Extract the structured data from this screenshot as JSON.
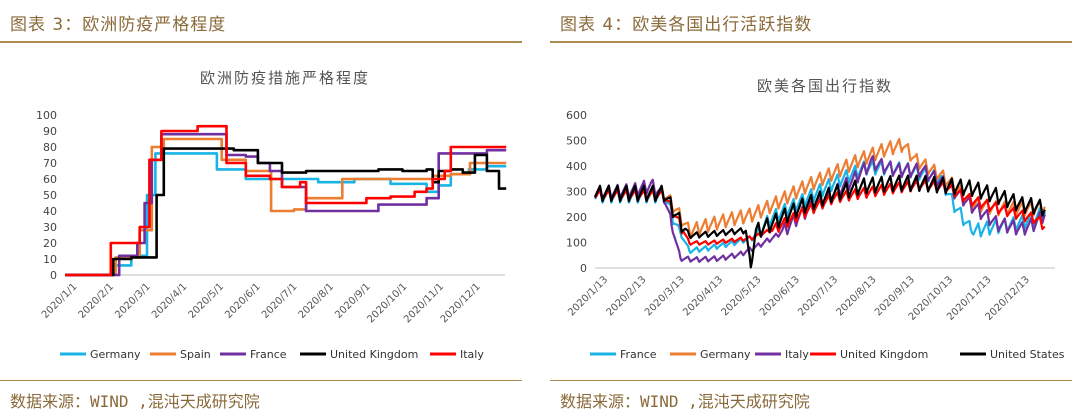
{
  "left_panel": {
    "figure_title": "图表 3：欧洲防疫严格程度",
    "source": "数据来源：WIND ,混沌天成研究院"
  },
  "right_panel": {
    "figure_title": "图表 4：欧美各国出行活跃指数",
    "source": "数据来源：WIND ,混沌天成研究院"
  },
  "chart_data": [
    {
      "type": "line",
      "title": "欧洲防疫措施严格程度",
      "xlabel": "",
      "ylabel": "",
      "ylim": [
        0,
        100
      ],
      "yticks": [
        0,
        10,
        20,
        30,
        40,
        50,
        60,
        70,
        80,
        90,
        100
      ],
      "x_tick_labels": [
        "2020/1/1",
        "2020/2/1",
        "2020/3/1",
        "2020/4/1",
        "2020/5/1",
        "2020/6/1",
        "2020/7/1",
        "2020/8/1",
        "2020/9/1",
        "2020/10/1",
        "2020/11/1",
        "2020/12/1"
      ],
      "x_range_days": [
        0,
        365
      ],
      "grid": false,
      "legend": "bottom",
      "series": [
        {
          "name": "Germany",
          "color": "#1ab3e6",
          "points": [
            [
              0,
              0
            ],
            [
              30,
              0
            ],
            [
              40,
              6
            ],
            [
              55,
              12
            ],
            [
              68,
              50
            ],
            [
              75,
              76
            ],
            [
              100,
              76
            ],
            [
              122,
              76
            ],
            [
              126,
              66
            ],
            [
              150,
              60
            ],
            [
              180,
              60
            ],
            [
              210,
              58
            ],
            [
              240,
              60
            ],
            [
              270,
              57
            ],
            [
              300,
              52
            ],
            [
              310,
              56
            ],
            [
              320,
              63
            ],
            [
              335,
              66
            ],
            [
              350,
              68
            ],
            [
              366,
              68
            ]
          ]
        },
        {
          "name": "Spain",
          "color": "#ed7d31",
          "points": [
            [
              0,
              0
            ],
            [
              30,
              0
            ],
            [
              42,
              11
            ],
            [
              62,
              28
            ],
            [
              72,
              80
            ],
            [
              82,
              85
            ],
            [
              120,
              85
            ],
            [
              130,
              72
            ],
            [
              150,
              65
            ],
            [
              168,
              65
            ],
            [
              171,
              40
            ],
            [
              190,
              41
            ],
            [
              200,
              48
            ],
            [
              230,
              60
            ],
            [
              260,
              60
            ],
            [
              290,
              60
            ],
            [
              305,
              62
            ],
            [
              320,
              63
            ],
            [
              336,
              70
            ],
            [
              366,
              70
            ]
          ]
        },
        {
          "name": "France",
          "color": "#7030a0",
          "points": [
            [
              0,
              0
            ],
            [
              30,
              0
            ],
            [
              45,
              12
            ],
            [
              60,
              20
            ],
            [
              66,
              45
            ],
            [
              72,
              72
            ],
            [
              80,
              88
            ],
            [
              130,
              88
            ],
            [
              134,
              75
            ],
            [
              150,
              74
            ],
            [
              160,
              70
            ],
            [
              170,
              65
            ],
            [
              180,
              55
            ],
            [
              200,
              40
            ],
            [
              240,
              40
            ],
            [
              260,
              44
            ],
            [
              282,
              44
            ],
            [
              300,
              48
            ],
            [
              310,
              76
            ],
            [
              330,
              76
            ],
            [
              350,
              78
            ],
            [
              366,
              78
            ]
          ]
        },
        {
          "name": "United Kingdom",
          "color": "#000000",
          "points": [
            [
              0,
              0
            ],
            [
              30,
              0
            ],
            [
              40,
              10
            ],
            [
              55,
              11
            ],
            [
              70,
              11
            ],
            [
              76,
              50
            ],
            [
              82,
              79
            ],
            [
              90,
              79
            ],
            [
              120,
              79
            ],
            [
              140,
              78
            ],
            [
              160,
              70
            ],
            [
              180,
              64
            ],
            [
              200,
              65
            ],
            [
              230,
              65
            ],
            [
              260,
              66
            ],
            [
              280,
              65
            ],
            [
              300,
              66
            ],
            [
              305,
              58
            ],
            [
              310,
              65
            ],
            [
              320,
              66
            ],
            [
              330,
              64
            ],
            [
              340,
              75
            ],
            [
              350,
              65
            ],
            [
              358,
              65
            ],
            [
              360,
              54
            ],
            [
              366,
              54
            ]
          ]
        },
        {
          "name": "Italy",
          "color": "#ff0000",
          "points": [
            [
              0,
              0
            ],
            [
              30,
              0
            ],
            [
              38,
              20
            ],
            [
              55,
              20
            ],
            [
              62,
              30
            ],
            [
              70,
              72
            ],
            [
              80,
              90
            ],
            [
              100,
              90
            ],
            [
              110,
              93
            ],
            [
              130,
              93
            ],
            [
              134,
              70
            ],
            [
              150,
              62
            ],
            [
              170,
              60
            ],
            [
              180,
              55
            ],
            [
              195,
              58
            ],
            [
              200,
              45
            ],
            [
              230,
              45
            ],
            [
              250,
              48
            ],
            [
              270,
              49
            ],
            [
              290,
              52
            ],
            [
              300,
              54
            ],
            [
              305,
              60
            ],
            [
              315,
              65
            ],
            [
              320,
              80
            ],
            [
              366,
              80
            ]
          ]
        }
      ]
    },
    {
      "type": "line",
      "title": "欧美各国出行指数",
      "xlabel": "",
      "ylabel": "",
      "ylim": [
        0,
        600
      ],
      "yticks": [
        0,
        100,
        200,
        300,
        400,
        500,
        600
      ],
      "x_tick_labels": [
        "2020/1/13",
        "2020/2/13",
        "2020/3/13",
        "2020/4/13",
        "2020/5/13",
        "2020/6/13",
        "2020/7/13",
        "2020/8/13",
        "2020/9/13",
        "2020/10/13",
        "2020/11/13",
        "2020/12/13"
      ],
      "x_range_days": [
        0,
        366
      ],
      "grid": false,
      "legend": "bottom",
      "weekly_oscillation": true,
      "series": [
        {
          "name": "France",
          "color": "#1ab3e6",
          "amplitude": 40,
          "points": [
            [
              0,
              290
            ],
            [
              55,
              290
            ],
            [
              65,
              170
            ],
            [
              75,
              70
            ],
            [
              90,
              80
            ],
            [
              110,
              100
            ],
            [
              125,
              120
            ],
            [
              140,
              200
            ],
            [
              165,
              270
            ],
            [
              190,
              340
            ],
            [
              215,
              400
            ],
            [
              230,
              400
            ],
            [
              250,
              390
            ],
            [
              275,
              360
            ],
            [
              285,
              260
            ],
            [
              300,
              150
            ],
            [
              320,
              170
            ],
            [
              335,
              180
            ],
            [
              350,
              200
            ],
            [
              358,
              230
            ]
          ]
        },
        {
          "name": "Germany",
          "color": "#ed7d31",
          "amplitude": 40,
          "points": [
            [
              0,
              300
            ],
            [
              55,
              300
            ],
            [
              65,
              230
            ],
            [
              75,
              150
            ],
            [
              90,
              175
            ],
            [
              110,
              200
            ],
            [
              125,
              215
            ],
            [
              140,
              250
            ],
            [
              165,
              320
            ],
            [
              190,
              380
            ],
            [
              210,
              430
            ],
            [
              230,
              470
            ],
            [
              245,
              490
            ],
            [
              255,
              430
            ],
            [
              275,
              370
            ],
            [
              285,
              330
            ],
            [
              300,
              260
            ],
            [
              320,
              240
            ],
            [
              335,
              240
            ],
            [
              350,
              240
            ],
            [
              358,
              250
            ]
          ]
        },
        {
          "name": "Italy",
          "color": "#7030a0",
          "amplitude": 40,
          "points": [
            [
              0,
              300
            ],
            [
              30,
              310
            ],
            [
              45,
              330
            ],
            [
              55,
              290
            ],
            [
              62,
              150
            ],
            [
              68,
              40
            ],
            [
              80,
              35
            ],
            [
              100,
              40
            ],
            [
              115,
              55
            ],
            [
              130,
              90
            ],
            [
              145,
              130
            ],
            [
              165,
              220
            ],
            [
              190,
              300
            ],
            [
              205,
              350
            ],
            [
              220,
              420
            ],
            [
              240,
              390
            ],
            [
              260,
              390
            ],
            [
              280,
              330
            ],
            [
              300,
              250
            ],
            [
              320,
              180
            ],
            [
              340,
              160
            ],
            [
              350,
              180
            ],
            [
              358,
              220
            ]
          ]
        },
        {
          "name": "United Kingdom",
          "color": "#ff0000",
          "amplitude": 30,
          "points": [
            [
              0,
              290
            ],
            [
              55,
              290
            ],
            [
              65,
              200
            ],
            [
              75,
              100
            ],
            [
              90,
              100
            ],
            [
              110,
              110
            ],
            [
              125,
              120
            ],
            [
              140,
              150
            ],
            [
              165,
              220
            ],
            [
              190,
              280
            ],
            [
              215,
              300
            ],
            [
              240,
              320
            ],
            [
              260,
              330
            ],
            [
              280,
              320
            ],
            [
              300,
              270
            ],
            [
              320,
              240
            ],
            [
              340,
              210
            ],
            [
              350,
              200
            ],
            [
              358,
              170
            ]
          ]
        },
        {
          "name": "United States",
          "color": "#000000",
          "amplitude": 45,
          "points": [
            [
              0,
              300
            ],
            [
              55,
              300
            ],
            [
              65,
              210
            ],
            [
              75,
              130
            ],
            [
              90,
              135
            ],
            [
              110,
              145
            ],
            [
              120,
              150
            ],
            [
              124,
              5
            ],
            [
              128,
              150
            ],
            [
              140,
              180
            ],
            [
              165,
              250
            ],
            [
              190,
              300
            ],
            [
              215,
              330
            ],
            [
              240,
              340
            ],
            [
              260,
              340
            ],
            [
              280,
              330
            ],
            [
              300,
              320
            ],
            [
              320,
              290
            ],
            [
              340,
              255
            ],
            [
              350,
              250
            ],
            [
              358,
              240
            ]
          ]
        }
      ]
    }
  ]
}
